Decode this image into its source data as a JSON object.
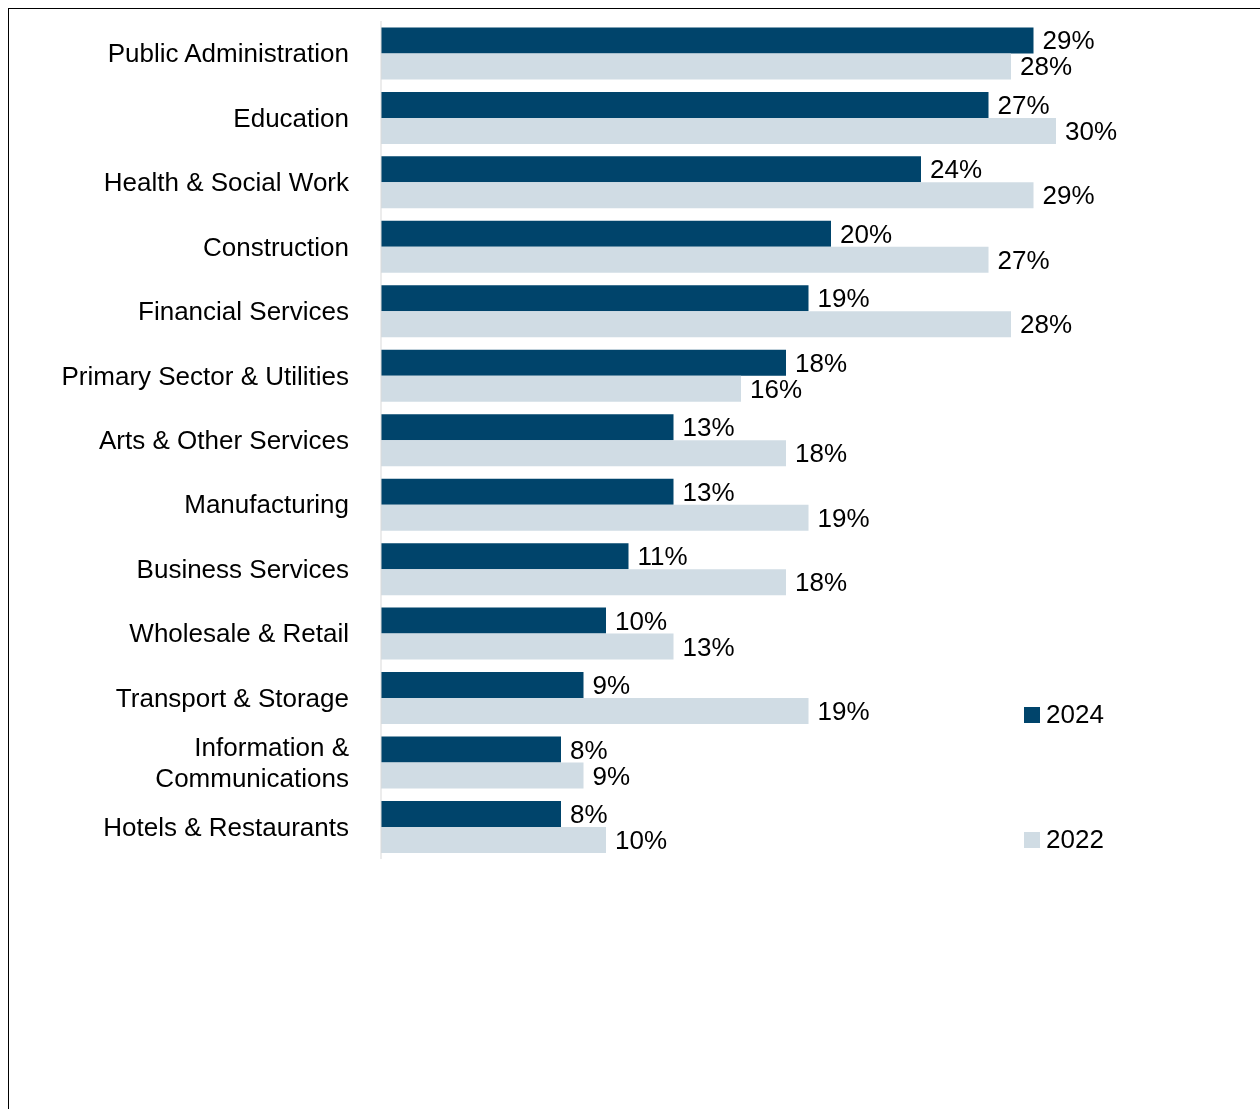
{
  "chart_data": {
    "type": "bar",
    "orientation": "horizontal",
    "legend": "right",
    "categories": [
      "Public Administration",
      "Education",
      "Health & Social Work",
      "Construction",
      "Financial Services",
      "Primary Sector & Utilities",
      "Arts & Other Services",
      "Manufacturing",
      "Business Services",
      "Wholesale & Retail",
      "Transport & Storage",
      "Information & Communications",
      "Hotels & Restaurants"
    ],
    "series": [
      {
        "name": "2024",
        "color": "#00446b",
        "values": [
          29,
          27,
          24,
          20,
          19,
          18,
          13,
          13,
          11,
          10,
          9,
          8,
          8
        ],
        "value_labels": [
          "29%",
          "27%",
          "24%",
          "20%",
          "19%",
          "18%",
          "13%",
          "13%",
          "11%",
          "10%",
          "9%",
          "8%",
          "8%"
        ]
      },
      {
        "name": "2022",
        "color": "#d0dce4",
        "values": [
          28,
          30,
          29,
          27,
          28,
          16,
          18,
          19,
          18,
          13,
          19,
          9,
          10
        ],
        "value_labels": [
          "28%",
          "30%",
          "29%",
          "27%",
          "28%",
          "16%",
          "18%",
          "19%",
          "18%",
          "13%",
          "19%",
          "9%",
          "10%"
        ]
      }
    ]
  }
}
